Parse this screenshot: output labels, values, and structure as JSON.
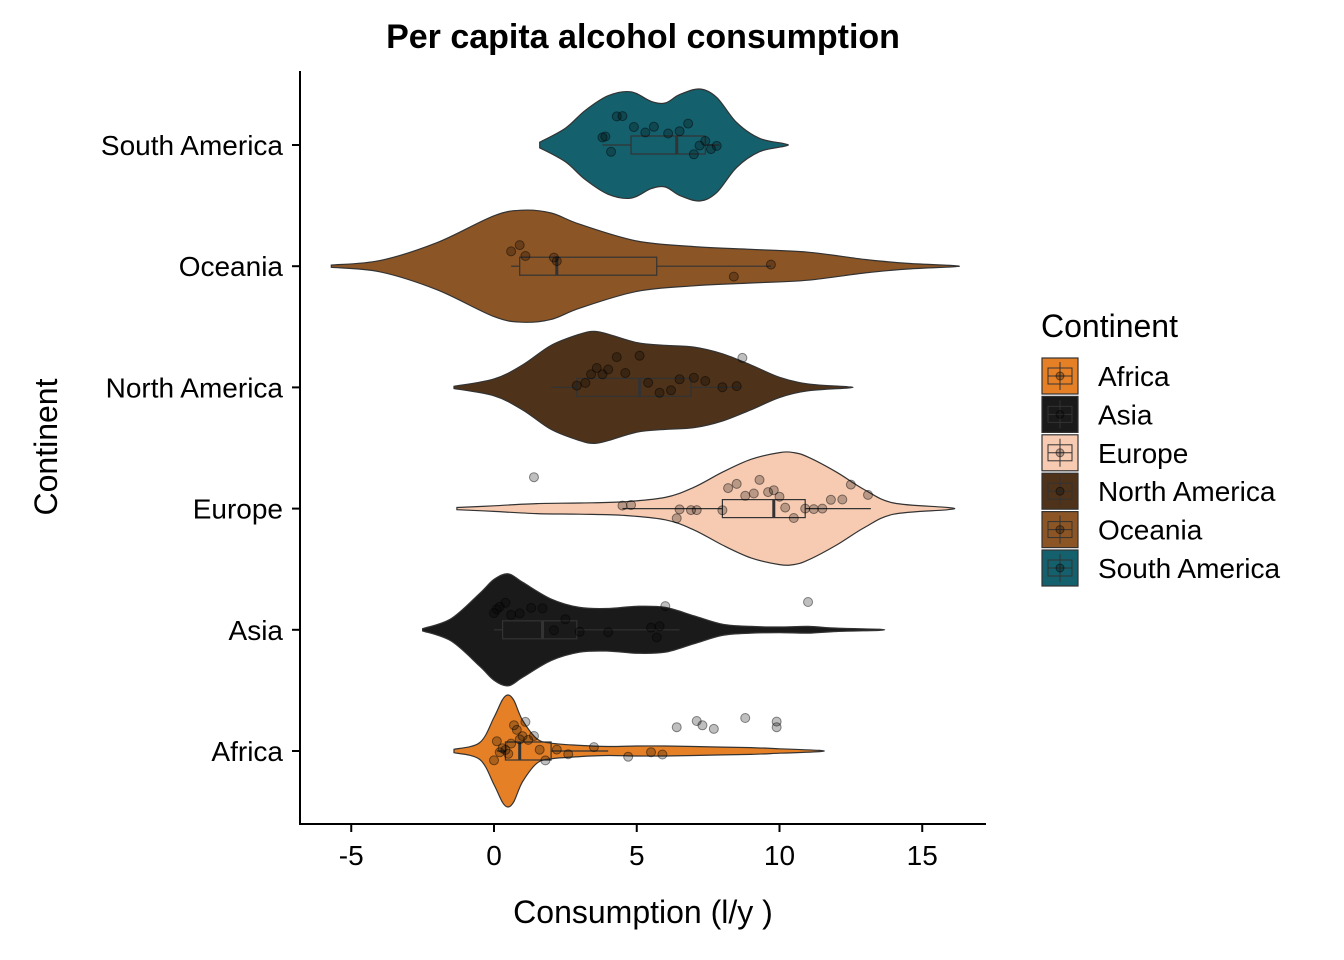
{
  "chart_data": {
    "type": "violin",
    "title": "Per capita alcohol consumption",
    "xlabel": "Consumption (l/y )",
    "ylabel": "Continent",
    "xlim": [
      -6.8,
      17.2
    ],
    "xticks": [
      -5,
      0,
      5,
      10,
      15
    ],
    "xtick_labels": [
      "-5",
      "0",
      "5",
      "10",
      "15"
    ],
    "grid": false,
    "legend": {
      "title": "Continent",
      "position": "right"
    },
    "series": [
      {
        "name": "Africa",
        "color": "#E58026",
        "violin_range": [
          -1.4,
          11.4
        ],
        "density_x": [
          -1.4,
          -0.5,
          0,
          0.3,
          0.5,
          0.7,
          1.0,
          1.5,
          2.0,
          3.0,
          4.0,
          5.0,
          6.0,
          7.0,
          8.0,
          9.0,
          10.0,
          11.4
        ],
        "density_w": [
          0.03,
          0.15,
          0.6,
          0.92,
          1.0,
          0.9,
          0.55,
          0.22,
          0.14,
          0.1,
          0.08,
          0.09,
          0.09,
          0.08,
          0.07,
          0.06,
          0.04,
          0.01
        ],
        "box": {
          "min": 0.1,
          "q1": 0.4,
          "median": 0.9,
          "q3": 2.0,
          "max": 4.0
        },
        "points": [
          0.0,
          0.1,
          0.2,
          0.3,
          0.4,
          0.5,
          0.6,
          0.7,
          0.8,
          0.9,
          1.0,
          1.1,
          1.2,
          1.4,
          1.6,
          1.8,
          2.2,
          2.6,
          3.5,
          4.7,
          5.5,
          5.9,
          6.4,
          7.1,
          7.3,
          7.7,
          8.8,
          9.9,
          9.9
        ]
      },
      {
        "name": "Asia",
        "color": "#1A1A1A",
        "violin_range": [
          -2.5,
          13.5
        ],
        "density_x": [
          -2.5,
          -1.5,
          -0.5,
          0,
          0.5,
          1.0,
          2.0,
          3.0,
          4.0,
          5.0,
          6.0,
          7.0,
          8.0,
          9.0,
          10.0,
          11.0,
          12.0,
          13.5
        ],
        "density_w": [
          0.02,
          0.2,
          0.65,
          0.9,
          1.0,
          0.85,
          0.55,
          0.4,
          0.38,
          0.42,
          0.4,
          0.25,
          0.1,
          0.06,
          0.05,
          0.06,
          0.03,
          0.01
        ],
        "box": {
          "min": 0.0,
          "q1": 0.3,
          "median": 1.7,
          "q3": 2.9,
          "max": 6.5
        },
        "points": [
          0.0,
          0.1,
          0.2,
          0.4,
          0.6,
          0.9,
          1.3,
          1.7,
          2.1,
          2.5,
          3.0,
          4.0,
          5.5,
          5.7,
          5.8,
          6.0,
          11.0
        ]
      },
      {
        "name": "Europe",
        "color": "#F7CBB2",
        "violin_range": [
          -1.3,
          15.9
        ],
        "density_x": [
          -1.3,
          0,
          1.5,
          3,
          4.5,
          6,
          7,
          8,
          9,
          10,
          10.5,
          11,
          12,
          13,
          14,
          15.9
        ],
        "density_w": [
          0.02,
          0.05,
          0.09,
          0.1,
          0.12,
          0.2,
          0.38,
          0.65,
          0.88,
          1.0,
          1.0,
          0.92,
          0.65,
          0.33,
          0.1,
          0.02
        ],
        "box": {
          "min": 4.5,
          "q1": 8.0,
          "median": 9.8,
          "q3": 10.9,
          "max": 13.2
        },
        "points": [
          1.4,
          4.5,
          4.8,
          6.4,
          6.5,
          6.9,
          7.1,
          8.0,
          8.2,
          8.5,
          8.8,
          9.1,
          9.3,
          9.6,
          9.8,
          10.0,
          10.2,
          10.5,
          10.9,
          11.2,
          11.5,
          11.8,
          12.2,
          12.5,
          13.1
        ]
      },
      {
        "name": "North America",
        "color": "#4E3219",
        "violin_range": [
          -1.4,
          12.4
        ],
        "density_x": [
          -1.4,
          0,
          1.0,
          2.0,
          3.0,
          3.5,
          4.0,
          5.0,
          6.0,
          7.0,
          8.0,
          9.0,
          10.0,
          11.0,
          12.4
        ],
        "density_w": [
          0.02,
          0.15,
          0.4,
          0.75,
          0.95,
          1.0,
          0.95,
          0.8,
          0.75,
          0.72,
          0.6,
          0.4,
          0.18,
          0.06,
          0.01
        ],
        "box": {
          "min": 2.0,
          "q1": 2.9,
          "median": 5.1,
          "q3": 6.9,
          "max": 8.7
        },
        "points": [
          2.9,
          3.2,
          3.4,
          3.6,
          3.8,
          4.0,
          4.3,
          4.6,
          5.1,
          5.4,
          5.8,
          6.2,
          6.5,
          7.0,
          7.4,
          8.0,
          8.5,
          8.7
        ]
      },
      {
        "name": "Oceania",
        "color": "#8C5525",
        "violin_range": [
          -5.7,
          16.1
        ],
        "density_x": [
          -5.7,
          -4,
          -2,
          0,
          1,
          2,
          3,
          5,
          7,
          9,
          11,
          13,
          14.5,
          16.1
        ],
        "density_w": [
          0.02,
          0.1,
          0.42,
          0.9,
          1.0,
          0.95,
          0.75,
          0.45,
          0.35,
          0.3,
          0.25,
          0.12,
          0.05,
          0.01
        ],
        "box": {
          "min": 0.6,
          "q1": 0.9,
          "median": 2.2,
          "q3": 5.7,
          "max": 9.7
        },
        "points": [
          0.6,
          0.9,
          1.1,
          2.1,
          2.2,
          8.4,
          9.7
        ]
      },
      {
        "name": "South America",
        "color": "#14606D",
        "violin_range": [
          1.6,
          10.2
        ],
        "density_x": [
          1.6,
          2.5,
          3.2,
          4.0,
          4.8,
          5.5,
          6.0,
          6.5,
          7.2,
          7.8,
          8.5,
          9.3,
          10.2
        ],
        "density_w": [
          0.05,
          0.3,
          0.62,
          0.88,
          0.95,
          0.78,
          0.75,
          0.9,
          1.0,
          0.85,
          0.4,
          0.12,
          0.02
        ],
        "box": {
          "min": 3.8,
          "q1": 4.8,
          "median": 6.4,
          "q3": 7.4,
          "max": 7.9
        },
        "points": [
          3.8,
          3.9,
          4.1,
          4.3,
          4.5,
          4.9,
          5.3,
          5.6,
          6.1,
          6.5,
          6.8,
          7.0,
          7.2,
          7.4,
          7.6,
          7.8
        ]
      }
    ]
  }
}
